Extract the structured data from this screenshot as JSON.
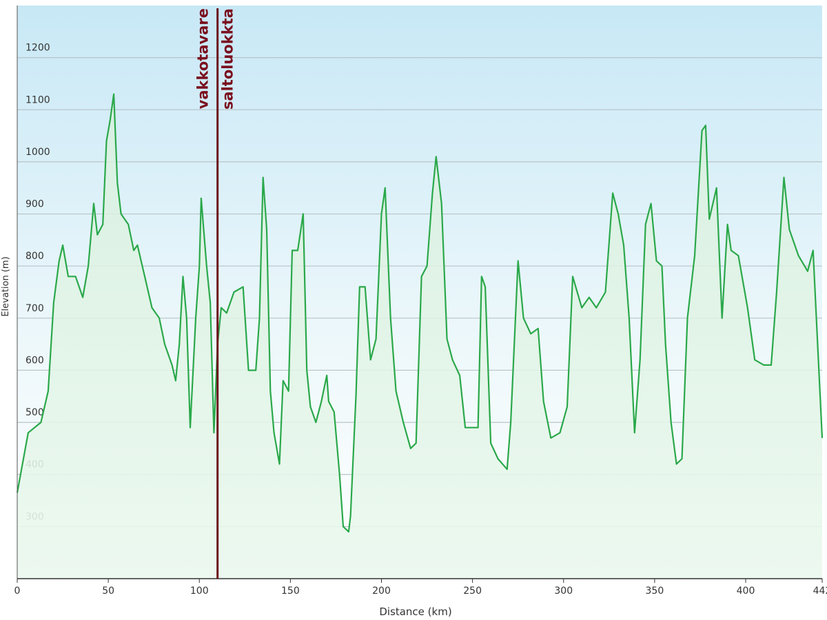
{
  "chart_data": {
    "type": "line",
    "xlabel": "Distance  (km)",
    "ylabel": "Elevation (m)",
    "xlim": [
      0,
      442
    ],
    "xticks": [
      0,
      50,
      100,
      150,
      200,
      250,
      300,
      350,
      400,
      442
    ],
    "ylim": [
      200,
      1300
    ],
    "yticks": [
      300,
      400,
      500,
      600,
      700,
      800,
      900,
      1000,
      1100,
      1200
    ],
    "grid": true,
    "x": [
      0,
      6,
      13,
      17,
      20,
      23,
      25,
      28,
      32,
      36,
      39,
      42,
      44,
      47,
      49,
      51,
      53,
      55,
      57,
      61,
      64,
      66,
      70,
      74,
      78,
      81,
      85,
      87,
      89,
      91,
      93,
      95,
      98,
      100,
      101,
      104,
      106,
      108,
      110,
      112,
      115,
      119,
      124,
      127,
      131,
      133,
      135,
      137,
      139,
      141,
      144,
      146,
      149,
      151,
      154,
      157,
      159,
      161,
      164,
      167,
      170,
      171,
      174,
      177,
      179,
      182,
      183,
      186,
      188,
      191,
      194,
      197,
      200,
      202,
      205,
      208,
      212,
      216,
      219,
      222,
      225,
      228,
      230,
      233,
      236,
      239,
      243,
      246,
      253,
      255,
      257,
      260,
      264,
      269,
      271,
      275,
      278,
      282,
      286,
      289,
      293,
      298,
      302,
      305,
      310,
      314,
      318,
      323,
      327,
      330,
      333,
      336,
      339,
      342,
      345,
      348,
      351,
      354,
      356,
      359,
      362,
      365,
      368,
      372,
      376,
      378,
      380,
      384,
      387,
      390,
      392,
      396,
      401,
      405,
      410,
      414,
      417,
      421,
      424,
      429,
      434,
      437,
      442
    ],
    "series": [
      {
        "name": "Elevation",
        "color": "#2aa84a",
        "values": [
          365,
          480,
          500,
          560,
          730,
          810,
          840,
          780,
          780,
          740,
          800,
          920,
          860,
          880,
          1040,
          1080,
          1130,
          960,
          900,
          880,
          830,
          840,
          780,
          720,
          700,
          650,
          610,
          580,
          650,
          780,
          700,
          490,
          700,
          800,
          930,
          800,
          730,
          480,
          650,
          720,
          710,
          750,
          760,
          600,
          600,
          700,
          970,
          870,
          560,
          480,
          420,
          580,
          560,
          830,
          830,
          900,
          600,
          530,
          500,
          540,
          590,
          540,
          520,
          400,
          300,
          290,
          320,
          550,
          760,
          760,
          620,
          660,
          900,
          950,
          700,
          560,
          500,
          450,
          460,
          780,
          800,
          940,
          1010,
          920,
          660,
          620,
          590,
          490,
          490,
          780,
          760,
          460,
          430,
          410,
          500,
          810,
          700,
          670,
          680,
          540,
          470,
          480,
          530,
          780,
          720,
          740,
          720,
          750,
          940,
          900,
          840,
          700,
          480,
          620,
          880,
          920,
          810,
          800,
          650,
          500,
          420,
          430,
          700,
          820,
          1060,
          1070,
          890,
          950,
          700,
          880,
          830,
          820,
          720,
          620,
          610,
          610,
          750,
          970,
          870,
          820,
          790,
          830,
          470
        ]
      }
    ],
    "annotations": [
      {
        "x": 110,
        "labels": [
          "vakkotavare",
          "saltoluokkta"
        ],
        "color": "#6b0d1a"
      }
    ]
  }
}
